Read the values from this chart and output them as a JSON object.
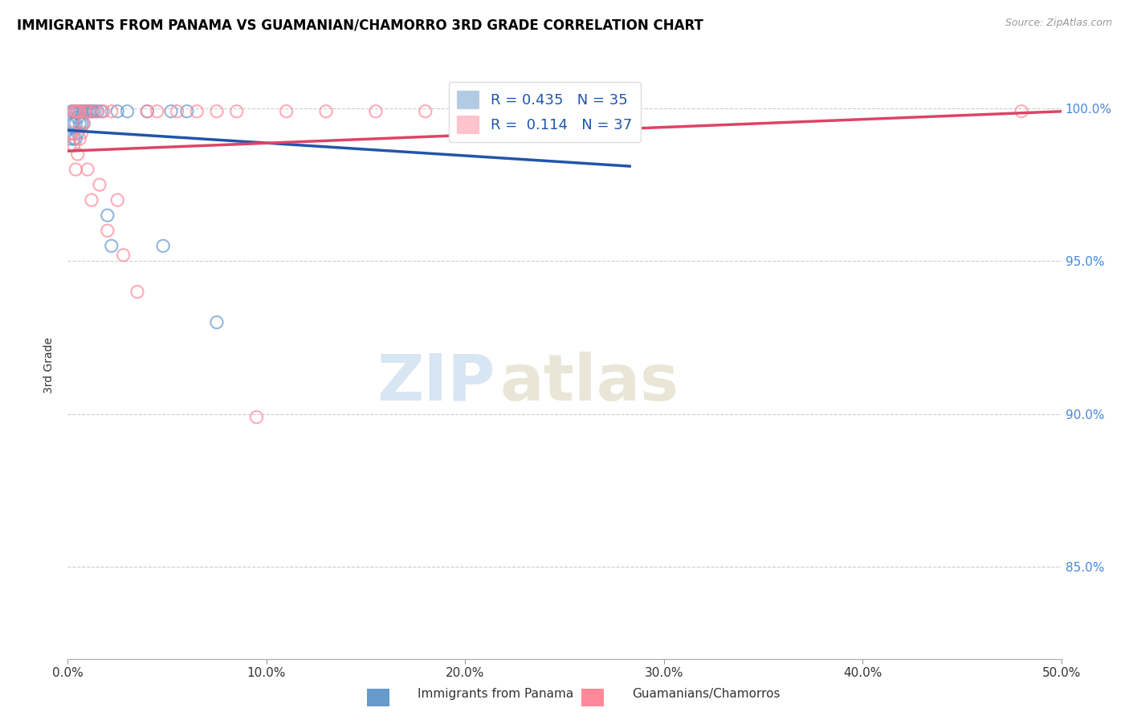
{
  "title": "IMMIGRANTS FROM PANAMA VS GUAMANIAN/CHAMORRO 3RD GRADE CORRELATION CHART",
  "source": "Source: ZipAtlas.com",
  "ylabel": "3rd Grade",
  "xlim": [
    0.0,
    0.5
  ],
  "ylim": [
    0.82,
    1.012
  ],
  "ytick_labels": [
    "85.0%",
    "90.0%",
    "95.0%",
    "100.0%"
  ],
  "ytick_values": [
    0.85,
    0.9,
    0.95,
    1.0
  ],
  "xtick_labels": [
    "0.0%",
    "10.0%",
    "20.0%",
    "30.0%",
    "40.0%",
    "50.0%"
  ],
  "xtick_values": [
    0.0,
    0.1,
    0.2,
    0.3,
    0.4,
    0.5
  ],
  "blue_R": 0.435,
  "blue_N": 35,
  "pink_R": 0.114,
  "pink_N": 37,
  "blue_color": "#6699CC",
  "pink_color": "#FF8899",
  "blue_line_color": "#2255AA",
  "pink_line_color": "#DD4466",
  "watermark_zip": "ZIP",
  "watermark_atlas": "atlas",
  "legend_label_blue": "Immigrants from Panama",
  "legend_label_pink": "Guamanians/Chamorros",
  "blue_x": [
    0.001,
    0.002,
    0.002,
    0.003,
    0.003,
    0.003,
    0.004,
    0.004,
    0.004,
    0.005,
    0.005,
    0.005,
    0.006,
    0.006,
    0.007,
    0.007,
    0.008,
    0.008,
    0.009,
    0.01,
    0.011,
    0.012,
    0.013,
    0.015,
    0.017,
    0.02,
    0.022,
    0.025,
    0.03,
    0.04,
    0.048,
    0.052,
    0.06,
    0.075,
    0.28
  ],
  "blue_y": [
    0.99,
    0.995,
    0.999,
    0.99,
    0.995,
    0.999,
    0.99,
    0.995,
    0.999,
    0.992,
    0.997,
    0.999,
    0.995,
    0.999,
    0.995,
    0.999,
    0.995,
    0.999,
    0.999,
    0.999,
    0.999,
    0.999,
    0.999,
    0.999,
    0.999,
    0.965,
    0.955,
    0.999,
    0.999,
    0.999,
    0.955,
    0.999,
    0.999,
    0.93,
    0.999
  ],
  "pink_x": [
    0.001,
    0.002,
    0.003,
    0.003,
    0.004,
    0.004,
    0.005,
    0.005,
    0.006,
    0.006,
    0.007,
    0.008,
    0.009,
    0.01,
    0.011,
    0.012,
    0.014,
    0.016,
    0.018,
    0.02,
    0.022,
    0.025,
    0.028,
    0.035,
    0.04,
    0.045,
    0.055,
    0.065,
    0.075,
    0.085,
    0.095,
    0.11,
    0.13,
    0.155,
    0.18,
    0.22,
    0.48
  ],
  "pink_y": [
    0.988,
    0.992,
    0.988,
    0.999,
    0.98,
    0.999,
    0.985,
    0.999,
    0.99,
    0.999,
    0.992,
    0.995,
    0.999,
    0.98,
    0.999,
    0.97,
    0.999,
    0.975,
    0.999,
    0.96,
    0.999,
    0.97,
    0.952,
    0.94,
    0.999,
    0.999,
    0.999,
    0.999,
    0.999,
    0.999,
    0.899,
    0.999,
    0.999,
    0.999,
    0.999,
    0.999,
    0.999
  ]
}
